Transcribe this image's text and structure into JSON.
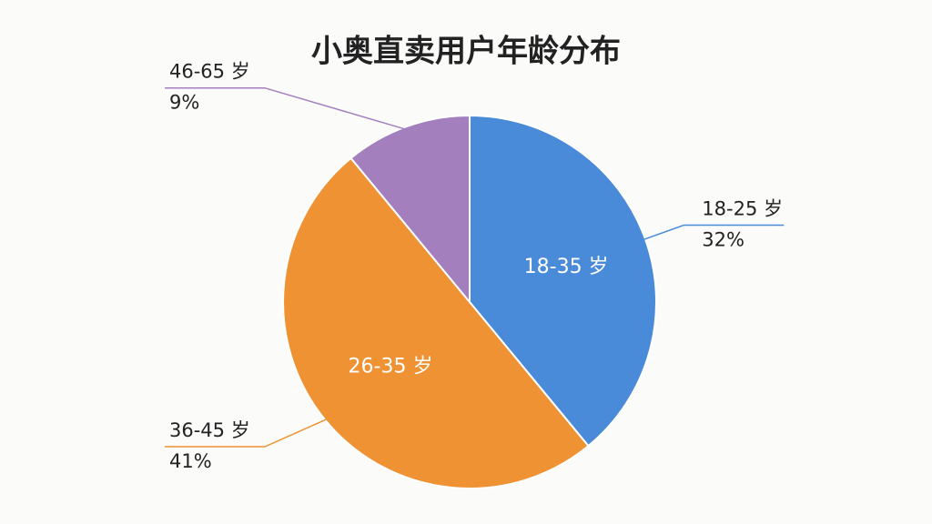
{
  "chart_data": {
    "type": "pie",
    "title": "小奥直卖用户年龄分布",
    "categories": [
      "18-25 岁",
      "36-45 岁",
      "46-65 岁"
    ],
    "values": [
      32,
      41,
      9
    ],
    "value_labels": [
      "32%",
      "41%",
      "9%"
    ],
    "colors": [
      "#4a8bd9",
      "#ee9233",
      "#a47fbd"
    ],
    "slice_annotations": [
      "18-35 岁",
      "26-35 岁"
    ]
  }
}
